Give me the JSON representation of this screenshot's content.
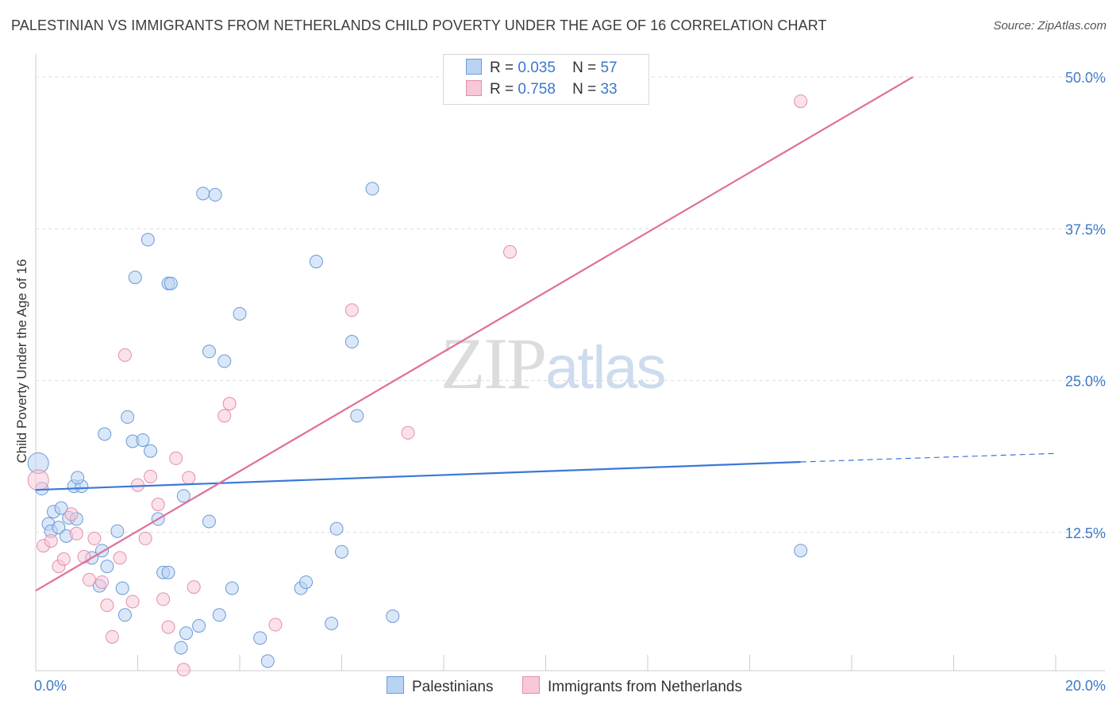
{
  "title": "PALESTINIAN VS IMMIGRANTS FROM NETHERLANDS CHILD POVERTY UNDER THE AGE OF 16 CORRELATION CHART",
  "source": "Source: ZipAtlas.com",
  "watermark": {
    "zip": "ZIP",
    "atlas": "atlas"
  },
  "legend": {
    "r_label": "R =",
    "n_label": "N =",
    "series1": {
      "r": "0.035",
      "n": "57"
    },
    "series2": {
      "r": "0.758",
      "n": "33"
    }
  },
  "bottom_legend": {
    "series1": "Palestinians",
    "series2": "Immigrants from Netherlands"
  },
  "chart_data": {
    "type": "scatter",
    "title": "PALESTINIAN VS IMMIGRANTS FROM NETHERLANDS CHILD POVERTY UNDER THE AGE OF 16 CORRELATION CHART",
    "xlabel": "",
    "ylabel": "Child Poverty Under the Age of 16",
    "xlim": [
      0,
      20
    ],
    "ylim": [
      0,
      50
    ],
    "x_tick_labels": [
      "0.0%",
      "20.0%"
    ],
    "y_ticks": [
      12.5,
      25.0,
      37.5,
      50.0
    ],
    "y_tick_labels": [
      "12.5%",
      "25.0%",
      "37.5%",
      "50.0%"
    ],
    "grid": true,
    "colors": {
      "series1": "#3a78d8",
      "series2": "#e0709a",
      "axis_text": "#3a78c8"
    },
    "series": [
      {
        "name": "Palestinians",
        "r": 0.035,
        "n": 57,
        "trend": {
          "x0": 0,
          "y0": 16.0,
          "x1": 15.0,
          "y1": 18.3,
          "dashed_to_x": 20,
          "dashed_to_y": 19.0
        },
        "points": [
          [
            0.05,
            18.2
          ],
          [
            0.12,
            16.1
          ],
          [
            0.35,
            14.2
          ],
          [
            0.5,
            14.5
          ],
          [
            0.25,
            13.2
          ],
          [
            0.3,
            12.6
          ],
          [
            0.45,
            12.9
          ],
          [
            0.65,
            13.7
          ],
          [
            0.8,
            13.6
          ],
          [
            0.6,
            12.2
          ],
          [
            0.75,
            16.3
          ],
          [
            0.9,
            16.3
          ],
          [
            0.82,
            17.0
          ],
          [
            1.35,
            20.6
          ],
          [
            1.8,
            22.0
          ],
          [
            1.9,
            20.0
          ],
          [
            2.1,
            20.1
          ],
          [
            2.25,
            19.2
          ],
          [
            1.6,
            12.6
          ],
          [
            1.3,
            11.0
          ],
          [
            1.1,
            10.4
          ],
          [
            1.4,
            9.7
          ],
          [
            1.25,
            8.1
          ],
          [
            1.7,
            7.9
          ],
          [
            1.75,
            5.7
          ],
          [
            2.4,
            13.6
          ],
          [
            2.5,
            9.2
          ],
          [
            2.6,
            9.2
          ],
          [
            2.9,
            15.5
          ],
          [
            3.4,
            13.4
          ],
          [
            3.6,
            5.7
          ],
          [
            3.2,
            4.8
          ],
          [
            2.95,
            4.2
          ],
          [
            2.85,
            3.0
          ],
          [
            3.85,
            7.9
          ],
          [
            4.4,
            3.8
          ],
          [
            4.55,
            1.9
          ],
          [
            5.2,
            7.9
          ],
          [
            5.3,
            8.4
          ],
          [
            5.8,
            5.0
          ],
          [
            5.9,
            12.8
          ],
          [
            6.0,
            10.9
          ],
          [
            7.0,
            5.6
          ],
          [
            6.3,
            22.1
          ],
          [
            6.2,
            28.2
          ],
          [
            5.5,
            34.8
          ],
          [
            6.6,
            40.8
          ],
          [
            4.0,
            30.5
          ],
          [
            3.4,
            27.4
          ],
          [
            3.7,
            26.6
          ],
          [
            2.2,
            36.6
          ],
          [
            1.95,
            33.5
          ],
          [
            2.6,
            33.0
          ],
          [
            2.65,
            33.0
          ],
          [
            3.28,
            40.4
          ],
          [
            3.52,
            40.3
          ],
          [
            15.0,
            11.0
          ]
        ]
      },
      {
        "name": "Immigrants from Netherlands",
        "r": 0.758,
        "n": 33,
        "trend": {
          "x0": 0,
          "y0": 7.7,
          "x1": 17.2,
          "y1": 50.0
        },
        "points": [
          [
            0.05,
            16.8
          ],
          [
            0.15,
            11.4
          ],
          [
            0.3,
            11.8
          ],
          [
            0.45,
            9.7
          ],
          [
            0.55,
            10.3
          ],
          [
            0.7,
            14.0
          ],
          [
            0.8,
            12.4
          ],
          [
            0.95,
            10.5
          ],
          [
            1.05,
            8.6
          ],
          [
            1.15,
            12.0
          ],
          [
            1.3,
            8.4
          ],
          [
            1.4,
            6.5
          ],
          [
            1.5,
            3.9
          ],
          [
            1.65,
            10.4
          ],
          [
            1.75,
            27.1
          ],
          [
            1.9,
            6.8
          ],
          [
            2.0,
            16.4
          ],
          [
            2.15,
            12.0
          ],
          [
            2.25,
            17.1
          ],
          [
            2.4,
            14.8
          ],
          [
            2.5,
            7.0
          ],
          [
            2.6,
            4.7
          ],
          [
            2.75,
            18.6
          ],
          [
            2.9,
            1.2
          ],
          [
            3.0,
            17.0
          ],
          [
            3.1,
            8.0
          ],
          [
            3.7,
            22.1
          ],
          [
            3.8,
            23.1
          ],
          [
            4.7,
            4.9
          ],
          [
            6.2,
            30.8
          ],
          [
            7.3,
            20.7
          ],
          [
            9.3,
            35.6
          ],
          [
            15.0,
            48.0
          ]
        ]
      }
    ]
  }
}
